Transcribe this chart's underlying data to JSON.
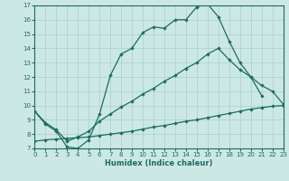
{
  "xlabel": "Humidex (Indice chaleur)",
  "background_color": "#cce8e4",
  "grid_color": "#aacfcb",
  "line_color": "#1e6b62",
  "xlim": [
    0,
    23
  ],
  "ylim": [
    7,
    17
  ],
  "yticks": [
    7,
    8,
    9,
    10,
    11,
    12,
    13,
    14,
    15,
    16,
    17
  ],
  "xticks": [
    0,
    1,
    2,
    3,
    4,
    5,
    6,
    7,
    8,
    9,
    10,
    11,
    12,
    13,
    14,
    15,
    16,
    17,
    18,
    19,
    20,
    21,
    22,
    23
  ],
  "s1_x": [
    0,
    1,
    2,
    3,
    4,
    5,
    6,
    7,
    8,
    9,
    10,
    11,
    12,
    13,
    14,
    15,
    16,
    17,
    18,
    19,
    20,
    21
  ],
  "s1_y": [
    9.6,
    8.7,
    8.2,
    7.1,
    7.0,
    7.6,
    9.4,
    12.1,
    13.6,
    14.0,
    15.1,
    15.5,
    15.4,
    16.0,
    16.0,
    16.9,
    17.1,
    16.2,
    14.5,
    13.0,
    12.0,
    10.7
  ],
  "s2_x": [
    0,
    1,
    2,
    3,
    4,
    5,
    6,
    7,
    8,
    9,
    10,
    11,
    12,
    13,
    14,
    15,
    16,
    17,
    18,
    19,
    20,
    21,
    22,
    23
  ],
  "s2_y": [
    9.6,
    8.8,
    8.3,
    7.5,
    7.8,
    8.2,
    8.9,
    9.4,
    9.9,
    10.3,
    10.8,
    11.2,
    11.7,
    12.1,
    12.6,
    13.0,
    13.6,
    14.0,
    13.2,
    12.5,
    12.0,
    11.4,
    11.0,
    10.1
  ],
  "s3_x": [
    0,
    1,
    2,
    3,
    4,
    5,
    6,
    7,
    8,
    9,
    10,
    11,
    12,
    13,
    14,
    15,
    16,
    17,
    18,
    19,
    20,
    21,
    22,
    23
  ],
  "s3_y": [
    7.5,
    7.6,
    7.65,
    7.7,
    7.75,
    7.8,
    7.9,
    8.0,
    8.1,
    8.2,
    8.35,
    8.5,
    8.6,
    8.75,
    8.9,
    9.0,
    9.15,
    9.3,
    9.45,
    9.6,
    9.75,
    9.85,
    9.95,
    10.0
  ]
}
